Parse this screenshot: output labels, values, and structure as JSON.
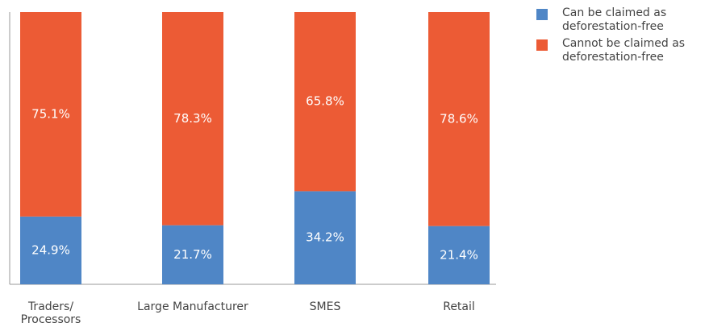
{
  "chart_data": {
    "type": "stacked_bar",
    "categories": [
      "Traders/ Processors",
      "Large Manufacturer",
      "SMES",
      "Retail"
    ],
    "series": [
      {
        "name": "Can be claimed as deforestation-free",
        "color": "#4f86c6",
        "values": [
          24.9,
          21.7,
          34.2,
          21.4
        ],
        "value_labels": [
          "24.9%",
          "21.7%",
          "34.2%",
          "21.4%"
        ]
      },
      {
        "name": "Cannot be claimed as deforestation-free",
        "color": "#ec5b35",
        "values": [
          75.1,
          78.3,
          65.8,
          78.6
        ],
        "value_labels": [
          "75.1%",
          "78.3%",
          "65.8%",
          "78.6%"
        ]
      }
    ],
    "ylim": [
      0,
      100
    ],
    "legend": "right"
  }
}
